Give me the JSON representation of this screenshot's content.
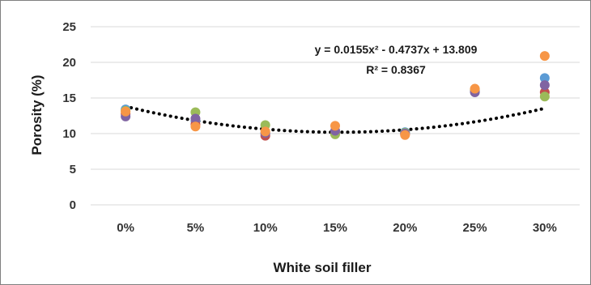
{
  "chart_data": {
    "type": "scatter",
    "xlabel": "White soil  filler",
    "ylabel": "Porosity (%)",
    "categories": [
      "0%",
      "5%",
      "10%",
      "15%",
      "20%",
      "25%",
      "30%"
    ],
    "ylim": [
      0,
      25
    ],
    "yticks": [
      "0",
      "5",
      "10",
      "15",
      "20",
      "25"
    ],
    "grid": "horizontal",
    "series": [
      {
        "color": "#5b9bd5",
        "values": [
          13.4,
          11.8,
          10.0,
          10.2,
          10.2,
          15.9,
          17.8
        ]
      },
      {
        "color": "#c0504d",
        "values": [
          12.8,
          11.3,
          9.7,
          10.0,
          9.9,
          16.1,
          15.8
        ]
      },
      {
        "color": "#9bbb59",
        "values": [
          13.2,
          13.0,
          11.2,
          9.9,
          10.1,
          16.2,
          15.2
        ]
      },
      {
        "color": "#8064a2",
        "values": [
          12.4,
          12.1,
          10.1,
          10.4,
          10.0,
          15.8,
          16.8
        ]
      },
      {
        "color": "#f79646",
        "values": [
          13.1,
          11.0,
          10.3,
          11.1,
          9.8,
          16.3,
          20.9
        ]
      }
    ],
    "trendline": {
      "type": "polynomial",
      "order": 2,
      "style": "dotted",
      "color": "#000000",
      "coefficients": [
        0.0155,
        -0.4737,
        13.809
      ],
      "x_unit_step_percent": 5,
      "equation_label": "y = 0.0155x² - 0.4737x + 13.809",
      "r2_label": "R² = 0.8367"
    }
  }
}
